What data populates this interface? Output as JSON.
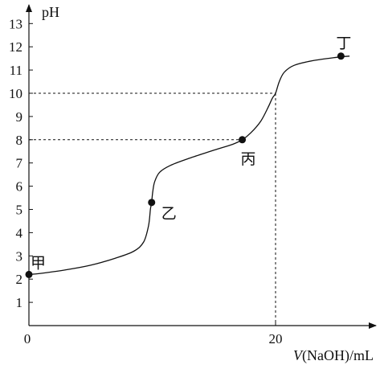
{
  "chart_data": {
    "type": "line",
    "xlabel": "V(NaOH)/mL",
    "xlabel_parts": {
      "var": "V",
      "rest": "(NaOH)/mL"
    },
    "ylabel": "pH",
    "x_ticks": [
      0,
      20
    ],
    "y_ticks": [
      1,
      2,
      3,
      4,
      5,
      6,
      7,
      8,
      9,
      10,
      11,
      12,
      13
    ],
    "xlim": [
      0,
      28
    ],
    "ylim": [
      0,
      14
    ],
    "grid": false,
    "series": [
      {
        "x": [
          0,
          1,
          3,
          5,
          7,
          8.5,
          9.3,
          9.7,
          9.85,
          9.95,
          10.05,
          10.2,
          10.6,
          11.5,
          13,
          15,
          16.5,
          17.3,
          18,
          18.8,
          19.4,
          19.75,
          20,
          20.3,
          20.7,
          21.5,
          23,
          25,
          26
        ],
        "y": [
          2.2,
          2.25,
          2.4,
          2.6,
          2.9,
          3.2,
          3.6,
          4.3,
          5.0,
          5.3,
          5.8,
          6.2,
          6.6,
          6.9,
          7.2,
          7.55,
          7.8,
          8.0,
          8.3,
          8.8,
          9.4,
          9.8,
          10.0,
          10.5,
          10.9,
          11.2,
          11.4,
          11.55,
          11.6
        ]
      }
    ],
    "points": [
      {
        "label": "甲",
        "x": 0,
        "y": 2.2
      },
      {
        "label": "乙",
        "x": 9.95,
        "y": 5.3
      },
      {
        "label": "丙",
        "x": 17.3,
        "y": 8.0
      },
      {
        "label": "丁",
        "x": 25.3,
        "y": 11.6
      }
    ],
    "reference_lines": [
      {
        "y": 10,
        "x": 20
      },
      {
        "y": 8,
        "x": 17.3
      }
    ]
  }
}
